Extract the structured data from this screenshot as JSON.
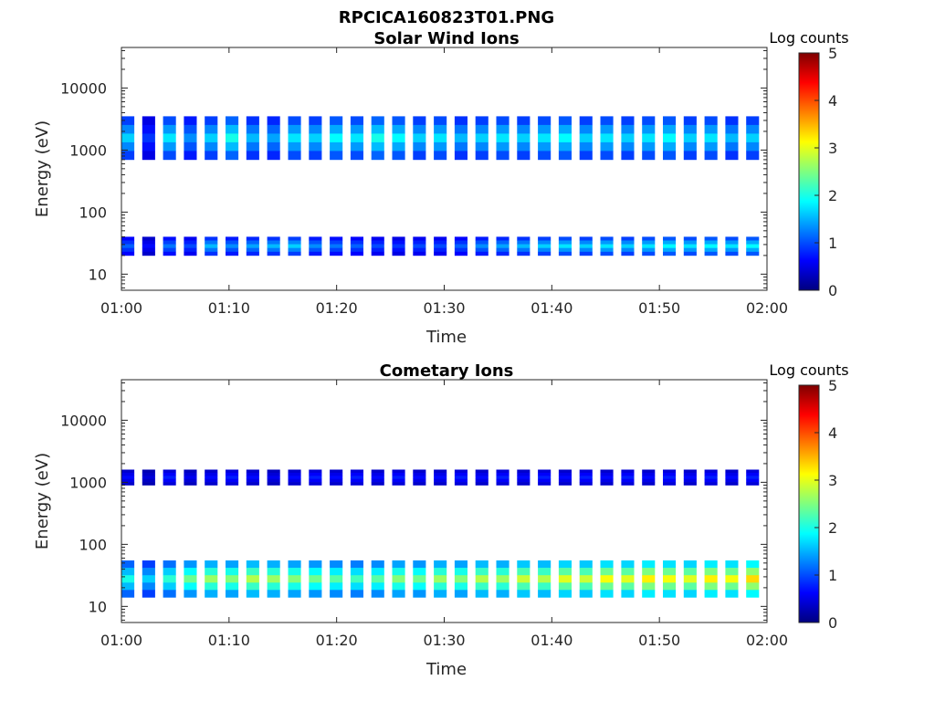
{
  "figure": {
    "title": "RPCICA160823T01.PNG"
  },
  "colormap": [
    "#00007f",
    "#0000ff",
    "#007fff",
    "#00ffff",
    "#7fff7f",
    "#ffff00",
    "#ff7f00",
    "#ff0000",
    "#7f0000"
  ],
  "chart_data": [
    {
      "type": "heatmap",
      "title": "Solar Wind Ions",
      "xlabel": "Time",
      "ylabel": "Energy (eV)",
      "x_ticks": [
        "01:00",
        "01:10",
        "01:20",
        "01:30",
        "01:40",
        "01:50",
        "02:00"
      ],
      "xlim_minutes": [
        0,
        60
      ],
      "y_scale": "log",
      "y_ticks": [
        10,
        100,
        1000,
        10000
      ],
      "y_tick_labels": [
        "10",
        "100",
        "1000",
        "10000"
      ],
      "ylim": [
        5.5,
        45000
      ],
      "colorbar": {
        "title": "Log counts",
        "min": 0,
        "max": 5,
        "ticks": [
          "0",
          "1",
          "2",
          "3",
          "4",
          "5"
        ]
      },
      "bands": [
        {
          "name": "",
          "e_min": 700,
          "e_max": 3500,
          "v": [
            1.5,
            0.8,
            1.6,
            1.2,
            1.5,
            1.8,
            1.4,
            1.3,
            1.6,
            1.5,
            1.7,
            1.6,
            1.8,
            1.7,
            1.5,
            1.6,
            1.4,
            1.5,
            1.6,
            1.5,
            1.6,
            1.7,
            1.5,
            1.6,
            1.5,
            1.6,
            1.7,
            1.5,
            1.6,
            1.4,
            1.5
          ]
        },
        {
          "name": "",
          "e_min": 20,
          "e_max": 40,
          "v": [
            1.0,
            0.6,
            1.1,
            0.9,
            1.4,
            1.2,
            1.3,
            1.4,
            1.5,
            1.2,
            1.1,
            1.0,
            0.9,
            0.8,
            0.9,
            0.9,
            1.0,
            1.2,
            1.3,
            1.4,
            1.5,
            1.6,
            1.5,
            1.6,
            1.5,
            1.6,
            1.7,
            1.6,
            1.7,
            1.6,
            1.7
          ]
        }
      ]
    },
    {
      "type": "heatmap",
      "title": "Cometary Ions",
      "xlabel": "Time",
      "ylabel": "Energy (eV)",
      "x_ticks": [
        "01:00",
        "01:10",
        "01:20",
        "01:30",
        "01:40",
        "01:50",
        "02:00"
      ],
      "xlim_minutes": [
        0,
        60
      ],
      "y_scale": "log",
      "y_ticks": [
        10,
        100,
        1000,
        10000
      ],
      "y_tick_labels": [
        "10",
        "100",
        "1000",
        "10000"
      ],
      "ylim": [
        5.5,
        45000
      ],
      "colorbar": {
        "title": "Log counts",
        "min": 0,
        "max": 5,
        "ticks": [
          "0",
          "1",
          "2",
          "3",
          "4",
          "5"
        ]
      },
      "bands": [
        {
          "name": "",
          "e_min": 900,
          "e_max": 1600,
          "v": [
            0.6,
            0.4,
            0.7,
            0.5,
            0.6,
            0.7,
            0.6,
            0.5,
            0.6,
            0.7,
            0.6,
            0.7,
            0.6,
            0.7,
            0.6,
            0.6,
            0.7,
            0.6,
            0.7,
            0.6,
            0.7,
            0.6,
            0.7,
            0.6,
            0.7,
            0.6,
            0.7,
            0.6,
            0.7,
            0.6,
            0.7
          ]
        },
        {
          "name": "",
          "e_min": 14,
          "e_max": 55,
          "v": [
            1.8,
            1.5,
            1.9,
            2.2,
            2.4,
            2.3,
            2.5,
            2.4,
            2.3,
            2.2,
            2.1,
            2.0,
            2.1,
            2.3,
            2.2,
            2.4,
            2.3,
            2.5,
            2.4,
            2.6,
            2.5,
            2.7,
            2.6,
            2.8,
            2.7,
            2.9,
            2.8,
            2.7,
            2.9,
            2.8,
            3.0
          ]
        }
      ]
    }
  ]
}
